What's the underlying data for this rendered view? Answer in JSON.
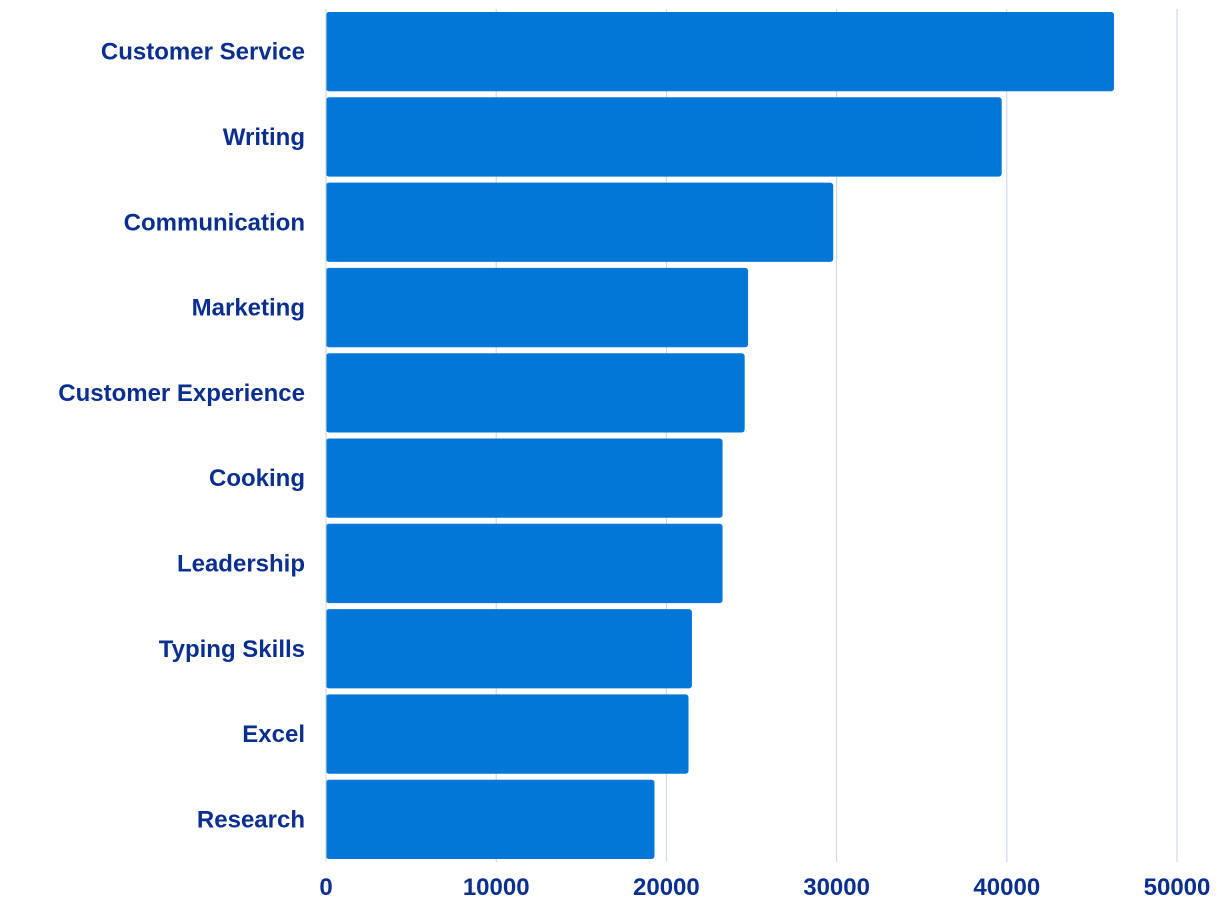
{
  "chart_data": {
    "type": "bar",
    "orientation": "horizontal",
    "categories": [
      "Customer Service",
      "Writing",
      "Communication",
      "Marketing",
      "Customer Experience",
      "Cooking",
      "Leadership",
      "Typing Skills",
      "Excel",
      "Research"
    ],
    "values": [
      46300,
      39700,
      29800,
      24800,
      24600,
      23300,
      23300,
      21500,
      21300,
      19300
    ],
    "title": "",
    "xlabel": "",
    "ylabel": "",
    "xlim": [
      0,
      50000
    ],
    "x_ticks": [
      "0",
      "10000",
      "20000",
      "30000",
      "40000",
      "50000"
    ],
    "x_tick_values": [
      0,
      10000,
      20000,
      30000,
      40000,
      50000
    ],
    "grid": "vertical",
    "legend": "none",
    "colors": {
      "bar": "#0277D8",
      "label": "#0A2F8F",
      "grid": "#C9D3E0",
      "axis": "#0A2F8F"
    }
  }
}
